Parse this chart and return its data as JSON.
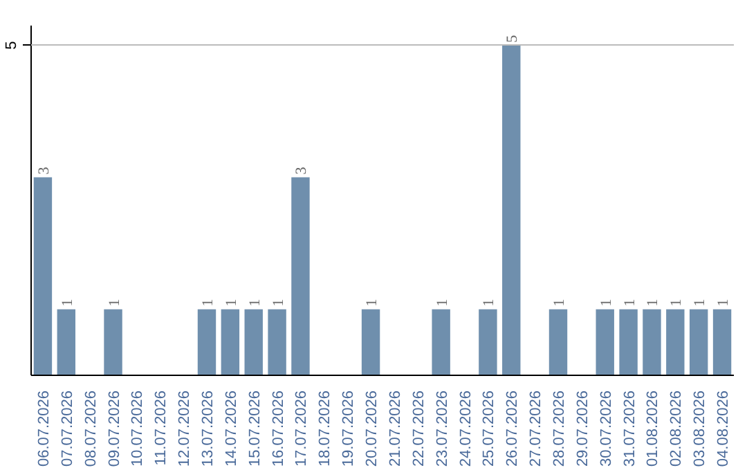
{
  "chart_data": {
    "type": "bar",
    "categories": [
      "06.07.2026",
      "07.07.2026",
      "08.07.2026",
      "09.07.2026",
      "10.07.2026",
      "11.07.2026",
      "12.07.2026",
      "13.07.2026",
      "14.07.2026",
      "15.07.2026",
      "16.07.2026",
      "17.07.2026",
      "18.07.2026",
      "19.07.2026",
      "20.07.2026",
      "21.07.2026",
      "22.07.2026",
      "23.07.2026",
      "24.07.2026",
      "25.07.2026",
      "26.07.2026",
      "27.07.2026",
      "28.07.2026",
      "29.07.2026",
      "30.07.2026",
      "31.07.2026",
      "01.08.2026",
      "02.08.2026",
      "03.08.2026",
      "04.08.2026"
    ],
    "values": [
      3,
      1,
      0,
      1,
      0,
      0,
      0,
      1,
      1,
      1,
      1,
      3,
      0,
      0,
      1,
      0,
      0,
      1,
      0,
      1,
      5,
      0,
      1,
      0,
      1,
      1,
      1,
      1,
      1,
      1
    ],
    "value_labels": [
      "3",
      "1",
      null,
      "1",
      null,
      null,
      null,
      "1",
      "1",
      "1",
      "1",
      "3",
      null,
      null,
      "1",
      null,
      null,
      "1",
      null,
      "1",
      "5",
      null,
      "1",
      null,
      "1",
      "1",
      "1",
      "1",
      "1",
      "1"
    ],
    "color": "#6f8fad",
    "ylim": [
      0,
      5.3
    ],
    "yticks": [
      5
    ],
    "grid": "y"
  }
}
